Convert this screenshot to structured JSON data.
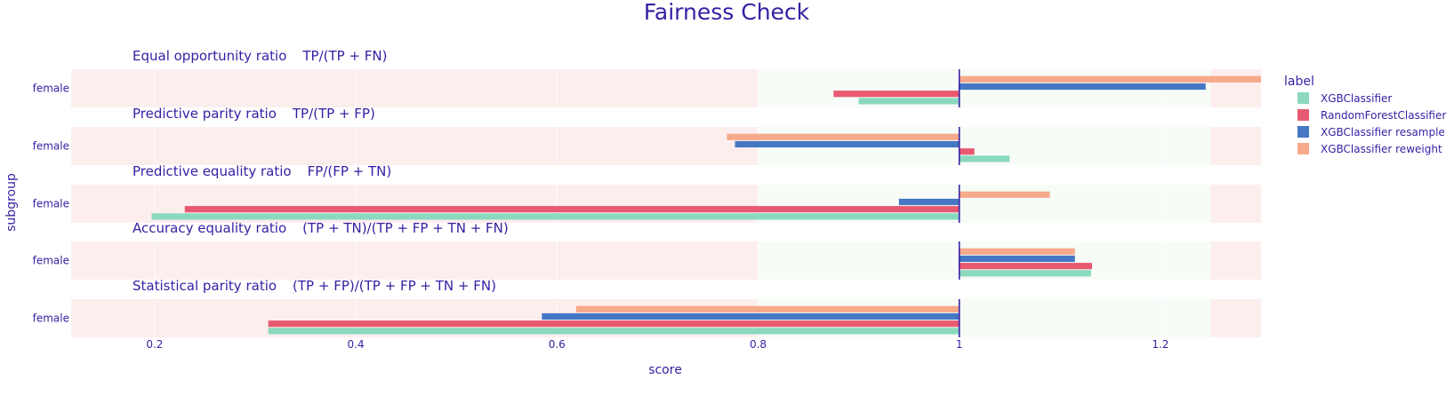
{
  "chart_data": {
    "type": "bar",
    "orientation": "horizontal",
    "title": "Fairness Check",
    "xlabel": "score",
    "ylabel": "subgroup",
    "xlim": [
      0.117,
      1.3
    ],
    "xticks": [
      "0.2",
      "0.4",
      "0.6",
      "0.8",
      "1",
      "1.2"
    ],
    "xtick_values": [
      0.2,
      0.4,
      0.6,
      0.8,
      1.0,
      1.2
    ],
    "baseline": 1.0,
    "fair_range": [
      0.8,
      1.25
    ],
    "grid": true,
    "legend": {
      "title": "label",
      "placement": "top-right",
      "entries": [
        "XGBClassifier",
        "RandomForestClassifier",
        "XGBClassifier resample",
        "XGBClassifier reweight"
      ]
    },
    "colors": {
      "series": [
        "#8ad9bf",
        "#e85a71",
        "#4577c4",
        "#f7a98b"
      ],
      "unfair_band": "#fdeeee",
      "fair_band": "#f7fcf7",
      "text": "#371ea3",
      "baseline": "#371ea3"
    },
    "panels": [
      {
        "metric": "Equal opportunity ratio",
        "formula": "TP/(TP + FN)",
        "subgroup": "female",
        "series": [
          {
            "name": "XGBClassifier",
            "value": 0.9
          },
          {
            "name": "RandomForestClassifier",
            "value": 0.875
          },
          {
            "name": "XGBClassifier resample",
            "value": 1.245
          },
          {
            "name": "XGBClassifier reweight",
            "value": 1.33
          }
        ]
      },
      {
        "metric": "Predictive parity ratio",
        "formula": "TP/(TP + FP)",
        "subgroup": "female",
        "series": [
          {
            "name": "XGBClassifier",
            "value": 1.05
          },
          {
            "name": "RandomForestClassifier",
            "value": 1.015
          },
          {
            "name": "XGBClassifier resample",
            "value": 0.777
          },
          {
            "name": "XGBClassifier reweight",
            "value": 0.769
          }
        ]
      },
      {
        "metric": "Predictive equality ratio",
        "formula": "FP/(FP + TN)",
        "subgroup": "female",
        "series": [
          {
            "name": "XGBClassifier",
            "value": 0.197
          },
          {
            "name": "RandomForestClassifier",
            "value": 0.23
          },
          {
            "name": "XGBClassifier resample",
            "value": 0.94
          },
          {
            "name": "XGBClassifier reweight",
            "value": 1.09
          }
        ]
      },
      {
        "metric": "Accuracy equality ratio",
        "formula": "(TP + TN)/(TP + FP + TN + FN)",
        "subgroup": "female",
        "series": [
          {
            "name": "XGBClassifier",
            "value": 1.131
          },
          {
            "name": "RandomForestClassifier",
            "value": 1.132
          },
          {
            "name": "XGBClassifier resample",
            "value": 1.115
          },
          {
            "name": "XGBClassifier reweight",
            "value": 1.115
          }
        ]
      },
      {
        "metric": "Statistical parity ratio",
        "formula": "(TP + FP)/(TP + FP + TN + FN)",
        "subgroup": "female",
        "series": [
          {
            "name": "XGBClassifier",
            "value": 0.313
          },
          {
            "name": "RandomForestClassifier",
            "value": 0.313
          },
          {
            "name": "XGBClassifier resample",
            "value": 0.585
          },
          {
            "name": "XGBClassifier reweight",
            "value": 0.619
          }
        ]
      }
    ]
  }
}
